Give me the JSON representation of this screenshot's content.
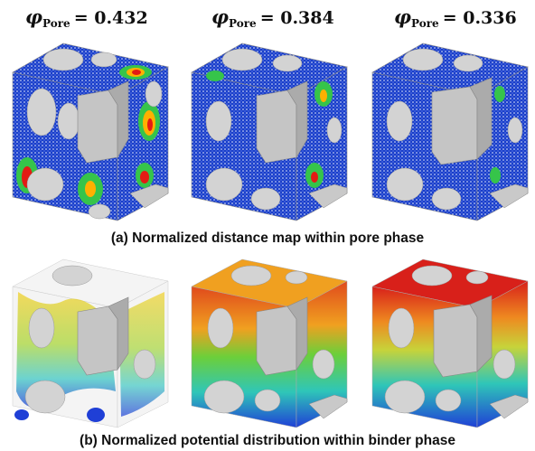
{
  "row_a": {
    "labels": [
      {
        "symbol": "φ",
        "subscript": "Pore",
        "value": "= 0.432"
      },
      {
        "symbol": "φ",
        "subscript": "Pore",
        "value": "= 0.384"
      },
      {
        "symbol": "φ",
        "subscript": "Pore",
        "value": "= 0.336"
      }
    ],
    "caption": "(a)  Normalized distance map within pore phase"
  },
  "row_b": {
    "caption": "(b)  Normalized potential distribution within binder phase"
  },
  "colors": {
    "pore_base": "#1a3fc9",
    "pore_speckle": "#e8ecff",
    "hot": "#e31b14",
    "warm": "#ffb000",
    "green": "#36c44a",
    "particle": "#d3d3d3",
    "particle_dark": "#9c9c9c"
  }
}
